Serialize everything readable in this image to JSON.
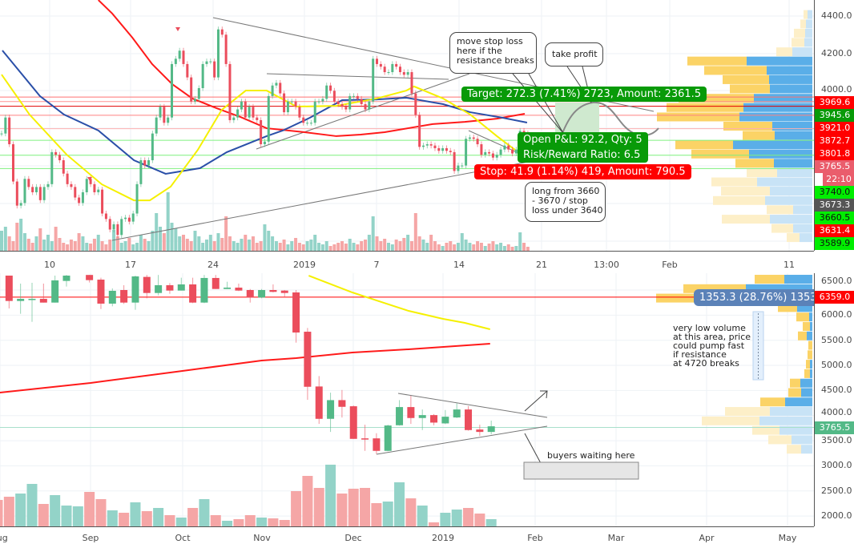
{
  "colors": {
    "up": "#53b987",
    "down": "#eb4d5c",
    "vol_up": "#93d3c8",
    "vol_down": "#f5a6a6",
    "ma_red": "#ff1a1a",
    "ma_blue": "#2a4fa8",
    "ma_yellow": "#f5f000",
    "profile_blue": "#5aaee8",
    "profile_yellow": "#fbd366",
    "profile_blue_pale": "#c8e3f6",
    "profile_yellow_pale": "#fdefc8",
    "grid": "#eef2f6",
    "target_green": "#089a08",
    "stop_red": "#ff0000"
  },
  "top_chart": {
    "y_ticks": [
      "4400.0",
      "4200.0",
      "4000.0"
    ],
    "x_ticks": [
      "10",
      "17",
      "24",
      "2019",
      "7",
      "14",
      "21",
      "13:00",
      "Feb",
      "11"
    ],
    "closes": [
      3776,
      3861,
      3719,
      3521,
      3393,
      3407,
      3535,
      3492,
      3464,
      3492,
      3422,
      3492,
      3507,
      3677,
      3663,
      3634,
      3563,
      3507,
      3492,
      3436,
      3407,
      3464,
      3535,
      3507,
      3464,
      3478,
      3351,
      3322,
      3266,
      3294,
      3237,
      3322,
      3329,
      3308,
      3351,
      3507,
      3634,
      3606,
      3634,
      3776,
      3861,
      3918,
      3833,
      3861,
      4145,
      4173,
      4216,
      4145,
      4074,
      3946,
      3960,
      4017,
      4145,
      4159,
      4159,
      4074,
      4329,
      4301,
      4145,
      3847,
      3861,
      3904,
      3946,
      3861,
      3918,
      3861,
      3847,
      3719,
      3733,
      3975,
      4031,
      4045,
      3989,
      3889,
      3946,
      3946,
      3918,
      3861,
      3833,
      3833,
      3833,
      3946,
      3946,
      3960,
      4031,
      4003,
      3946,
      3932,
      3918,
      3904,
      3975,
      3975,
      3960,
      3932,
      3904,
      3946,
      4173,
      4145,
      4131,
      4102,
      4102,
      4145,
      4131,
      4102,
      4088,
      4102,
      3989,
      3875,
      3705,
      3712,
      3719,
      3712,
      3698,
      3684,
      3698,
      3684,
      3677,
      3577,
      3606,
      3606,
      3748,
      3755,
      3748,
      3719,
      3663,
      3677,
      3670,
      3648,
      3663,
      3691,
      3712,
      3691,
      3670,
      3691,
      3790,
      3776,
      3762
    ],
    "volumes": [
      25,
      30,
      18,
      12,
      35,
      40,
      22,
      15,
      10,
      18,
      28,
      14,
      20,
      12,
      30,
      16,
      10,
      8,
      14,
      12,
      22,
      18,
      10,
      9,
      15,
      20,
      12,
      8,
      14,
      26,
      18,
      10,
      12,
      16,
      8,
      10,
      20,
      15,
      12,
      25,
      47,
      30,
      22,
      73,
      35,
      28,
      18,
      20,
      15,
      12,
      25,
      18,
      10,
      14,
      20,
      12,
      22,
      16,
      43,
      18,
      12,
      10,
      15,
      20,
      14,
      18,
      10,
      12,
      33,
      25,
      18,
      12,
      10,
      14,
      8,
      12,
      16,
      10,
      8,
      12,
      14,
      20,
      10,
      8,
      12,
      6,
      8,
      10,
      12,
      9,
      15,
      10,
      8,
      12,
      14,
      20,
      43,
      18,
      12,
      15,
      10,
      8,
      14,
      12,
      16,
      20,
      12,
      47,
      18,
      14,
      10,
      20,
      12,
      8,
      6,
      10,
      12,
      8,
      10,
      22,
      14,
      10,
      8,
      12,
      10,
      6,
      9,
      12,
      8,
      10,
      6,
      8,
      5,
      6,
      23,
      10,
      5
    ],
    "ma_red": [
      [
        25,
        4485
      ],
      [
        28.6,
        4413
      ],
      [
        33.8,
        4285
      ],
      [
        38.9,
        4145
      ],
      [
        44.1,
        4038
      ],
      [
        49.3,
        3962
      ],
      [
        55.5,
        3911
      ],
      [
        61.7,
        3864
      ],
      [
        68.5,
        3804
      ],
      [
        78.3,
        3783
      ],
      [
        86.5,
        3762
      ],
      [
        92.8,
        3770
      ],
      [
        99,
        3783
      ],
      [
        105,
        3804
      ],
      [
        111.4,
        3826
      ],
      [
        119.7,
        3838
      ],
      [
        128,
        3855
      ],
      [
        135.2,
        3881
      ]
    ],
    "ma_blue": [
      [
        0.2,
        4217
      ],
      [
        9.9,
        3975
      ],
      [
        16.1,
        3877
      ],
      [
        25,
        3792
      ],
      [
        34.2,
        3634
      ],
      [
        42.4,
        3562
      ],
      [
        51.3,
        3592
      ],
      [
        58.2,
        3677
      ],
      [
        68.5,
        3762
      ],
      [
        72.7,
        3792
      ],
      [
        79.7,
        3860
      ],
      [
        88,
        3953
      ],
      [
        96.9,
        3957
      ],
      [
        104.6,
        3966
      ],
      [
        114.1,
        3932
      ],
      [
        121.1,
        3889
      ],
      [
        129.4,
        3860
      ],
      [
        135.8,
        3834
      ]
    ],
    "ma_yellow": [
      [
        0,
        4089
      ],
      [
        7.2,
        3877
      ],
      [
        16.8,
        3664
      ],
      [
        25.9,
        3506
      ],
      [
        34.2,
        3421
      ],
      [
        38.3,
        3421
      ],
      [
        43.7,
        3494
      ],
      [
        50.7,
        3689
      ],
      [
        56.9,
        3902
      ],
      [
        63.1,
        4004
      ],
      [
        68.5,
        4004
      ],
      [
        76.2,
        3919
      ],
      [
        86.5,
        3923
      ],
      [
        96.9,
        3962
      ],
      [
        104.6,
        4004
      ],
      [
        106.6,
        4026
      ],
      [
        114.1,
        3962
      ],
      [
        121.1,
        3877
      ],
      [
        128,
        3762
      ],
      [
        132.7,
        3689
      ]
    ],
    "price_lines": [
      {
        "price": 3969.6,
        "label": "3969.6",
        "bg": "#ff0000",
        "fg": "#ffffff",
        "line": "#ff7070"
      },
      {
        "price": 3945.6,
        "label": "3945.6",
        "bg": "#089a08",
        "fg": "#ffffff",
        "line": "#ff9090"
      },
      {
        "price": 3921.0,
        "label": "3921.0",
        "bg": "#ff0000",
        "fg": "#ffffff",
        "line": "#e00000"
      },
      {
        "price": 3872.7,
        "label": "3872.7",
        "bg": "#ff0000",
        "fg": "#ffffff",
        "line": "#ff8080"
      },
      {
        "price": 3801.8,
        "label": "3801.8",
        "bg": "#ff0000",
        "fg": "#ffffff",
        "line": "#ffb0b0"
      },
      {
        "price": 3765.5,
        "label": "3765.5",
        "bg": "#ea5d6c",
        "fg": "#ffffff",
        "line": null
      },
      {
        "price": null,
        "label": "22:10",
        "bg": "#ea5d6c",
        "fg": "#ffffff",
        "line": null
      },
      {
        "price": 3740.0,
        "label": "3740.0",
        "bg": "#00ee00",
        "fg": "#111111",
        "line": "#7ff07f"
      },
      {
        "price": 3673.3,
        "label": "3673.3",
        "bg": "#555555",
        "fg": "#ffffff",
        "line": null
      },
      {
        "price": 3660.5,
        "label": "3660.5",
        "bg": "#00ee00",
        "fg": "#111111",
        "line": "#7ff07f"
      },
      {
        "price": 3631.4,
        "label": "3631.4",
        "bg": "#ff0000",
        "fg": "#ffffff",
        "line": null
      },
      {
        "price": 3589.9,
        "label": "3589.9",
        "bg": "#00ee00",
        "fg": "#111111",
        "line": "#7ff07f"
      }
    ],
    "profile": [
      {
        "price": 4408,
        "blue": 6,
        "yellow": 5,
        "in_range": false
      },
      {
        "price": 4358,
        "blue": 8,
        "yellow": 7,
        "in_range": false
      },
      {
        "price": 4309,
        "blue": 9,
        "yellow": 14,
        "in_range": false
      },
      {
        "price": 4260,
        "blue": 10,
        "yellow": 16,
        "in_range": false
      },
      {
        "price": 4210,
        "blue": 25,
        "yellow": 20,
        "in_range": false
      },
      {
        "price": 4161,
        "blue": 82,
        "yellow": 74,
        "in_range": true
      },
      {
        "price": 4111,
        "blue": 57,
        "yellow": 78,
        "in_range": true
      },
      {
        "price": 4062,
        "blue": 54,
        "yellow": 58,
        "in_range": true
      },
      {
        "price": 4013,
        "blue": 53,
        "yellow": 50,
        "in_range": true
      },
      {
        "price": 3963,
        "blue": 73,
        "yellow": 94,
        "in_range": true
      },
      {
        "price": 3914,
        "blue": 86,
        "yellow": 96,
        "in_range": true
      },
      {
        "price": 3864,
        "blue": 91,
        "yellow": 103,
        "in_range": true
      },
      {
        "price": 3815,
        "blue": 50,
        "yellow": 61,
        "in_range": true
      },
      {
        "price": 3766,
        "blue": 47,
        "yellow": 40,
        "in_range": true
      },
      {
        "price": 3716,
        "blue": 99,
        "yellow": 72,
        "in_range": true
      },
      {
        "price": 3667,
        "blue": 79,
        "yellow": 72,
        "in_range": true
      },
      {
        "price": 3618,
        "blue": 48,
        "yellow": 48,
        "in_range": true
      },
      {
        "price": 3568,
        "blue": 44,
        "yellow": 38,
        "in_range": false
      },
      {
        "price": 3519,
        "blue": 69,
        "yellow": 57,
        "in_range": false
      },
      {
        "price": 3470,
        "blue": 53,
        "yellow": 61,
        "in_range": false
      },
      {
        "price": 3420,
        "blue": 59,
        "yellow": 65,
        "in_range": false
      },
      {
        "price": 3371,
        "blue": 24,
        "yellow": 33,
        "in_range": false
      },
      {
        "price": 3321,
        "blue": 53,
        "yellow": 60,
        "in_range": false
      },
      {
        "price": 3272,
        "blue": 24,
        "yellow": 27,
        "in_range": false
      },
      {
        "price": 3223,
        "blue": 16,
        "yellow": 16,
        "in_range": false
      }
    ],
    "position": {
      "target_label": "Target: 272.3 (7.41%) 2723, Amount: 2361.5",
      "open_pl_label": "Open P&L: 92.2, Qty: 5",
      "risk_reward_label": "Risk/Reward Ratio: 6.5",
      "stop_label": "Stop: 41.9 (1.14%) 419, Amount: 790.5"
    },
    "callouts": {
      "move_stop": [
        "move stop loss",
        "here if the",
        "resistance breaks"
      ],
      "take_profit": [
        "take profit"
      ],
      "long_entry": [
        "long from 3660",
        "- 3670 / stop",
        "loss under 3640"
      ]
    }
  },
  "bottom_chart": {
    "y_ticks": [
      "6500.0",
      "6000.0",
      "5500.0",
      "5000.0",
      "4500.0",
      "4000.0",
      "3500.0",
      "3000.0",
      "2500.0",
      "2000.0"
    ],
    "x_ticks": [
      "Aug",
      "Sep",
      "Oct",
      "Nov",
      "Dec",
      "2019",
      "Feb",
      "Mar",
      "Apr",
      "May"
    ],
    "candles": [
      null,
      [
        6787,
        6787,
        6133,
        6282
      ],
      [
        6282,
        6628,
        6027,
        6324
      ],
      [
        6314,
        6644,
        5867,
        6324
      ],
      [
        6324,
        6628,
        6250,
        6250
      ],
      [
        6250,
        6787,
        6250,
        6692
      ],
      [
        6681,
        6800,
        6569,
        6787
      ],
      null,
      [
        6800,
        6800,
        6650,
        6697
      ],
      [
        6707,
        6745,
        6122,
        6229
      ],
      [
        6229,
        6532,
        6176,
        6484
      ],
      [
        6500,
        6596,
        6223,
        6250
      ],
      [
        6250,
        6787,
        6106,
        6771
      ],
      [
        6761,
        6800,
        6335,
        6441
      ],
      [
        6441,
        6800,
        6394,
        6596
      ],
      [
        6596,
        6638,
        6425,
        6489
      ],
      [
        6489,
        6745,
        6489,
        6612
      ],
      [
        6612,
        6745,
        6239,
        6250
      ],
      [
        6250,
        6800,
        6239,
        6740
      ],
      [
        6740,
        6800,
        6521,
        6521
      ],
      [
        6521,
        6665,
        6521,
        6548
      ],
      [
        6548,
        6628,
        6479,
        6489
      ],
      [
        6500,
        6521,
        6250,
        6351
      ],
      [
        6351,
        6521,
        6335,
        6500
      ],
      [
        6500,
        6612,
        6452,
        6463
      ],
      [
        6489,
        6500,
        6351,
        6441
      ],
      [
        6452,
        6500,
        5452,
        5654
      ],
      [
        5670,
        5745,
        4314,
        4574
      ],
      [
        4580,
        4787,
        3835,
        3936
      ],
      [
        3936,
        4457,
        3675,
        4308
      ],
      [
        4308,
        4510,
        3962,
        4175
      ],
      [
        4186,
        4202,
        3537,
        3537
      ],
      [
        3547,
        3819,
        3298,
        3537
      ],
      [
        3547,
        3649,
        3233,
        3298
      ],
      [
        3298,
        3819,
        3290,
        3803
      ],
      [
        3808,
        4308,
        3800,
        4170
      ],
      [
        4170,
        4404,
        3835,
        3952
      ],
      [
        3952,
        4122,
        3712,
        4010
      ],
      [
        4010,
        4030,
        3808,
        3861
      ],
      [
        3845,
        4111,
        3830,
        3978
      ],
      [
        3963,
        4244,
        3950,
        4122
      ],
      [
        4122,
        4190,
        3701,
        3712
      ],
      [
        3723,
        3819,
        3595,
        3675
      ],
      [
        3675,
        3900,
        3627,
        3787
      ]
    ],
    "volumes": [
      [
        33,
        false
      ],
      [
        37,
        false
      ],
      [
        41,
        true
      ],
      [
        53,
        true
      ],
      [
        28,
        false
      ],
      [
        39,
        true
      ],
      [
        26,
        true
      ],
      [
        25,
        true
      ],
      [
        43,
        false
      ],
      [
        34,
        false
      ],
      [
        20,
        true
      ],
      [
        17,
        false
      ],
      [
        30,
        true
      ],
      [
        19,
        false
      ],
      [
        23,
        true
      ],
      [
        14,
        false
      ],
      [
        11,
        true
      ],
      [
        23,
        false
      ],
      [
        34,
        true
      ],
      [
        14,
        false
      ],
      [
        7,
        true
      ],
      [
        9,
        false
      ],
      [
        14,
        false
      ],
      [
        11,
        true
      ],
      [
        10,
        false
      ],
      [
        8,
        false
      ],
      [
        44,
        false
      ],
      [
        63,
        false
      ],
      [
        48,
        false
      ],
      [
        77,
        true
      ],
      [
        41,
        false
      ],
      [
        47,
        false
      ],
      [
        48,
        false
      ],
      [
        29,
        false
      ],
      [
        31,
        true
      ],
      [
        55,
        true
      ],
      [
        35,
        false
      ],
      [
        26,
        true
      ],
      [
        5,
        false
      ],
      [
        17,
        true
      ],
      [
        21,
        true
      ],
      [
        23,
        false
      ],
      [
        16,
        false
      ],
      [
        9,
        true
      ]
    ],
    "ma_yellow": [
      [
        27.1,
        6787
      ],
      [
        30.9,
        6452
      ],
      [
        33,
        6293
      ],
      [
        35.8,
        6085
      ],
      [
        38.8,
        5926
      ],
      [
        40.7,
        5846
      ],
      [
        42.9,
        5718
      ]
    ],
    "ma_red": [
      [
        0.2,
        4459
      ],
      [
        8.1,
        4650
      ],
      [
        16.1,
        4889
      ],
      [
        23,
        5096
      ],
      [
        26,
        5144
      ],
      [
        30.9,
        5256
      ],
      [
        35.8,
        5320
      ],
      [
        42.9,
        5431
      ]
    ],
    "resistance_line": {
      "price": 6359.0,
      "label": "6359.0"
    },
    "last_price": {
      "price": 3765.5,
      "label": "3765.5"
    },
    "profile": [
      {
        "price": 6715,
        "blue": 35,
        "yellow": 37,
        "in_range": true
      },
      {
        "price": 6527,
        "blue": 83,
        "yellow": 78,
        "in_range": true
      },
      {
        "price": 6339,
        "blue": 90,
        "yellow": 105,
        "in_range": true
      },
      {
        "price": 6151,
        "blue": 19,
        "yellow": 24,
        "in_range": true
      },
      {
        "price": 5963,
        "blue": 4,
        "yellow": 16,
        "in_range": true
      },
      {
        "price": 5775,
        "blue": 3,
        "yellow": 9,
        "in_range": true
      },
      {
        "price": 5587,
        "blue": 7,
        "yellow": 11,
        "in_range": true
      },
      {
        "price": 5399,
        "blue": 0,
        "yellow": 5,
        "in_range": true
      },
      {
        "price": 5211,
        "blue": 0,
        "yellow": 6,
        "in_range": true
      },
      {
        "price": 5023,
        "blue": 3,
        "yellow": 5,
        "in_range": true
      },
      {
        "price": 4835,
        "blue": 3,
        "yellow": 7,
        "in_range": true
      },
      {
        "price": 4647,
        "blue": 15,
        "yellow": 13,
        "in_range": true
      },
      {
        "price": 4459,
        "blue": 14,
        "yellow": 16,
        "in_range": true
      },
      {
        "price": 4271,
        "blue": 34,
        "yellow": 31,
        "in_range": true
      },
      {
        "price": 4083,
        "blue": 53,
        "yellow": 56,
        "in_range": false
      },
      {
        "price": 3895,
        "blue": 66,
        "yellow": 72,
        "in_range": false
      },
      {
        "price": 3707,
        "blue": 41,
        "yellow": 34,
        "in_range": false
      },
      {
        "price": 3519,
        "blue": 26,
        "yellow": 29,
        "in_range": false
      },
      {
        "price": 3331,
        "blue": 14,
        "yellow": 18,
        "in_range": false
      }
    ],
    "measure_label": "1353.3 (28.76%) 1353",
    "note_low_volume": [
      "very low volume",
      "at this area, price",
      "could pump fast",
      "if resistance",
      "at 4720 breaks"
    ],
    "note_buyers": "buyers waiting here"
  }
}
